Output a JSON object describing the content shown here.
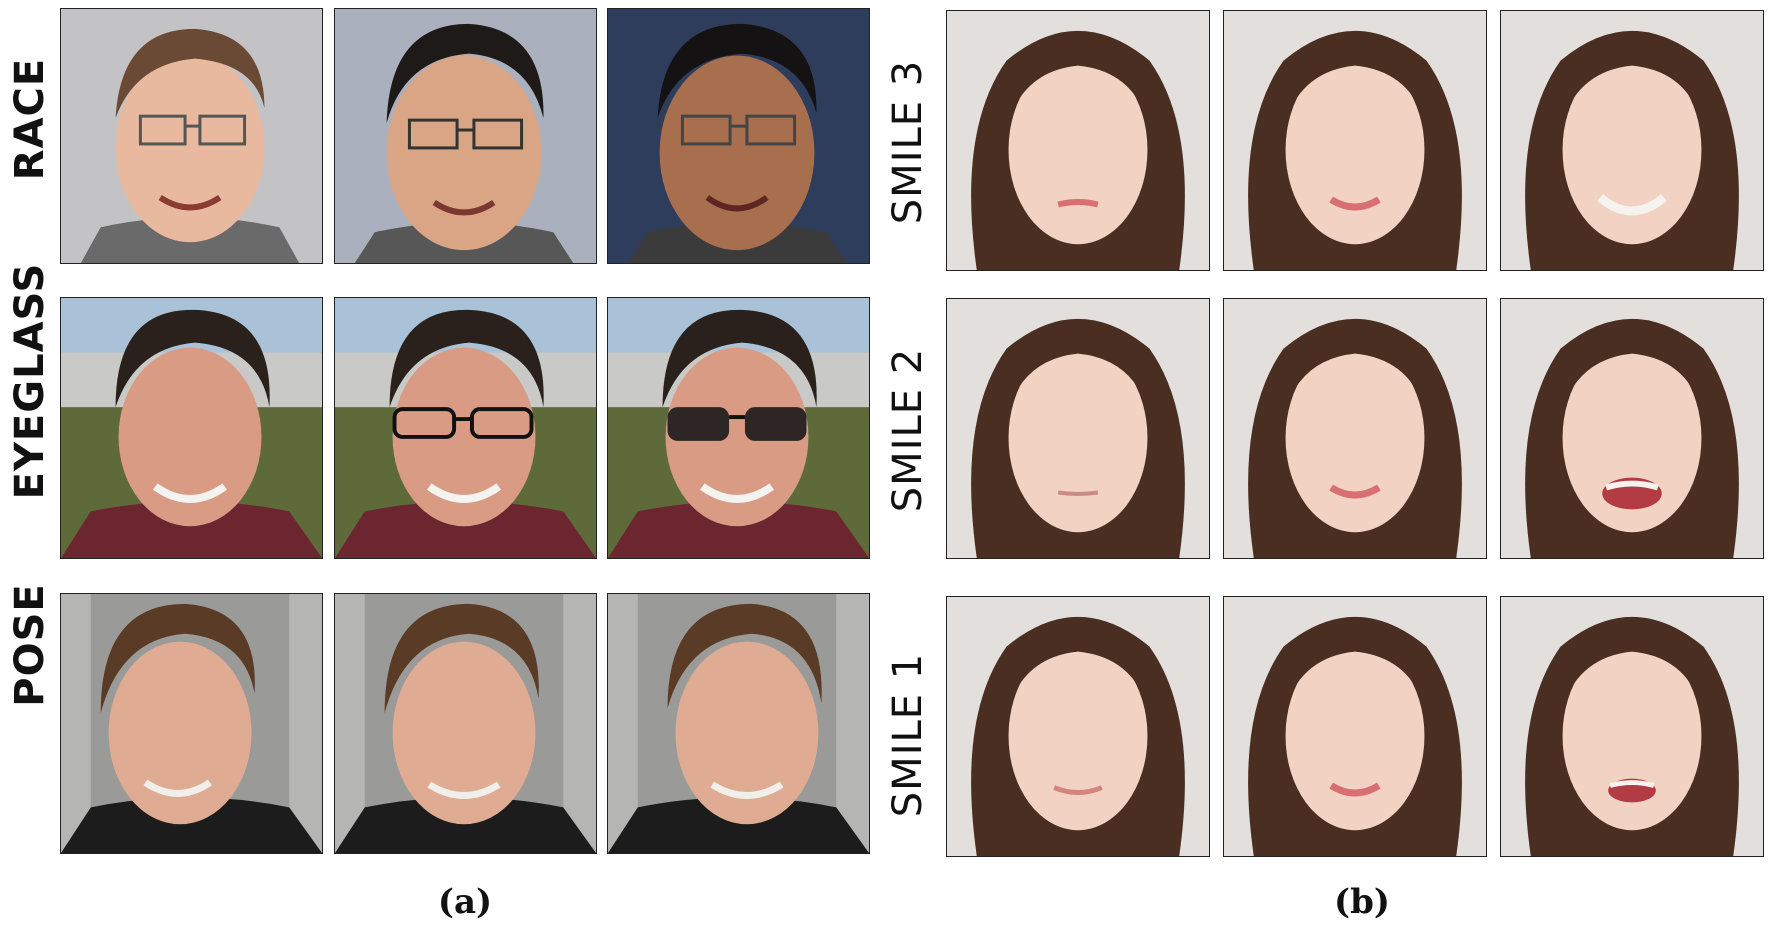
{
  "panel_a": {
    "caption": "(a)",
    "rows": [
      {
        "label": "RACE",
        "images": [
          "race-face-1",
          "race-face-2",
          "race-face-3"
        ]
      },
      {
        "label": "EYEGLASS",
        "images": [
          "eyeglass-face-1",
          "eyeglass-face-2",
          "eyeglass-face-3"
        ]
      },
      {
        "label": "POSE",
        "images": [
          "pose-face-1",
          "pose-face-2",
          "pose-face-3"
        ]
      }
    ]
  },
  "panel_b": {
    "caption": "(b)",
    "rows": [
      {
        "label": "SMILE 3",
        "images": [
          "smile3-face-1",
          "smile3-face-2",
          "smile3-face-3"
        ]
      },
      {
        "label": "SMILE 2",
        "images": [
          "smile2-face-1",
          "smile2-face-2",
          "smile2-face-3"
        ]
      },
      {
        "label": "SMILE 1",
        "images": [
          "smile1-face-1",
          "smile1-face-2",
          "smile1-face-3"
        ]
      }
    ]
  },
  "colors": {
    "background": "#ffffff",
    "border": "#222222",
    "label_text": "#111111",
    "panel_b_backdrop": "#e2dfdc",
    "woman_hair": "#4a2e22",
    "skin_light": "#f2d2c3"
  }
}
